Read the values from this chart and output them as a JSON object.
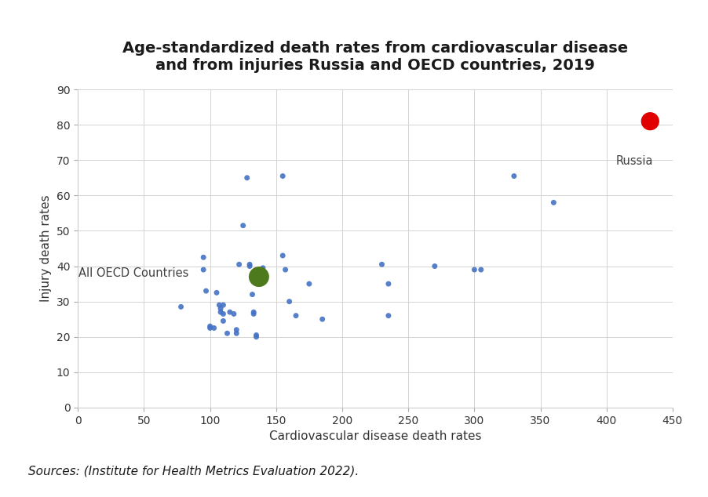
{
  "title_line1": "Age-standardized death rates from cardiovascular disease",
  "title_line2": "and from injuries Russia and OECD countries, 2019",
  "xlabel": "Cardiovascular disease death rates",
  "ylabel": "Injury death rates",
  "source": "Sources: (Institute for Health Metrics Evaluation 2022).",
  "xlim": [
    0,
    450
  ],
  "ylim": [
    0,
    90
  ],
  "xticks": [
    0,
    50,
    100,
    150,
    200,
    250,
    300,
    350,
    400,
    450
  ],
  "yticks": [
    0,
    10,
    20,
    30,
    40,
    50,
    60,
    70,
    80,
    90
  ],
  "background_color": "#ffffff",
  "oecd_points": [
    [
      78,
      28.5
    ],
    [
      95,
      42.5
    ],
    [
      95,
      39
    ],
    [
      97,
      33
    ],
    [
      100,
      22.5
    ],
    [
      100,
      23
    ],
    [
      103,
      22.5
    ],
    [
      105,
      32.5
    ],
    [
      107,
      29
    ],
    [
      108,
      28
    ],
    [
      108,
      27
    ],
    [
      110,
      29
    ],
    [
      110,
      26.5
    ],
    [
      110,
      24.5
    ],
    [
      113,
      21
    ],
    [
      115,
      27
    ],
    [
      118,
      26.5
    ],
    [
      120,
      22
    ],
    [
      120,
      21
    ],
    [
      122,
      40.5
    ],
    [
      125,
      51.5
    ],
    [
      128,
      65
    ],
    [
      130,
      40
    ],
    [
      130,
      40.5
    ],
    [
      132,
      32
    ],
    [
      133,
      27
    ],
    [
      133,
      26.5
    ],
    [
      135,
      20.5
    ],
    [
      135,
      20
    ],
    [
      140,
      39.5
    ],
    [
      140,
      38.5
    ],
    [
      155,
      65.5
    ],
    [
      155,
      43
    ],
    [
      157,
      39
    ],
    [
      160,
      30
    ],
    [
      165,
      26
    ],
    [
      175,
      35
    ],
    [
      185,
      25
    ],
    [
      230,
      40.5
    ],
    [
      235,
      35
    ],
    [
      235,
      26
    ],
    [
      270,
      40
    ],
    [
      300,
      39
    ],
    [
      305,
      39
    ],
    [
      330,
      65.5
    ],
    [
      360,
      58
    ]
  ],
  "oecd_color": "#4472c4",
  "oecd_size": 25,
  "oecd_avg_x": 137,
  "oecd_avg_y": 37,
  "oecd_avg_color": "#4e7a1e",
  "oecd_avg_size": 350,
  "oecd_avg_label": "All OECD Countries",
  "russia_x": 433,
  "russia_y": 81,
  "russia_color": "#e00000",
  "russia_size": 280,
  "russia_label": "Russia",
  "grid_color": "#d3d3d3",
  "title_fontsize": 14,
  "axis_label_fontsize": 11,
  "tick_fontsize": 10,
  "annotation_fontsize": 10.5,
  "source_fontsize": 11
}
